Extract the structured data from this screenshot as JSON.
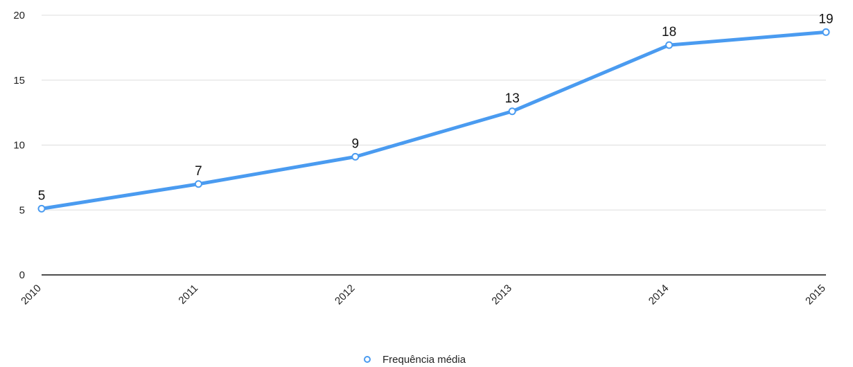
{
  "chart_data": {
    "type": "line",
    "categories": [
      "2010",
      "2011",
      "2012",
      "2013",
      "2014",
      "2015"
    ],
    "series": [
      {
        "name": "Frequência média",
        "values": [
          5.1,
          7.0,
          9.1,
          12.6,
          17.7,
          18.7
        ],
        "data_labels": [
          "5",
          "7",
          "9",
          "13",
          "18",
          "19"
        ]
      }
    ],
    "ylim": [
      0,
      20
    ],
    "yticks": [
      0,
      5,
      10,
      15,
      20
    ],
    "grid": true,
    "legend_position": "bottom",
    "line_color": "#4a9bf0",
    "marker_fill": "#ffffff",
    "grid_color": "#dddddd",
    "axis_color": "#111111"
  }
}
